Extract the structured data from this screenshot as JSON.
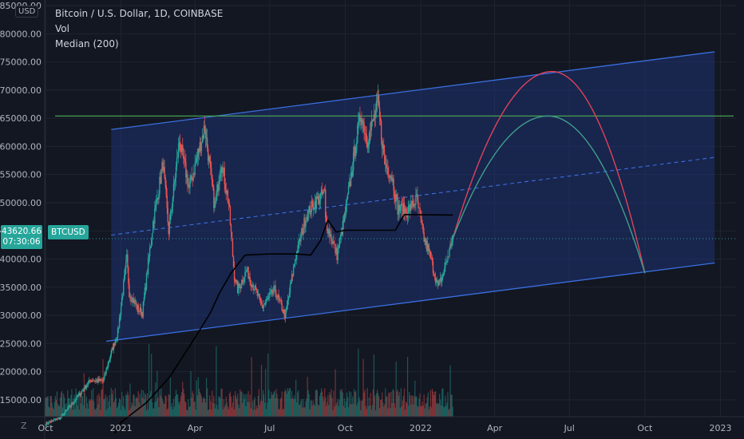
{
  "header": {
    "title": "Bitcoin / U.S. Dollar, 1D, COINBASE",
    "indicator_1": "Vol",
    "indicator_2": "Median (200)",
    "currency": "USD"
  },
  "price_tag": {
    "price": "43620.66",
    "countdown": "07:30:06",
    "symbol": "BTCUSD"
  },
  "bottom_icon": "Z",
  "colors": {
    "background": "#131722",
    "channel_fill": "#1e3a8a",
    "channel_line": "#3a6fe0",
    "resistance": "#4caf50",
    "up": "#26a69a",
    "down": "#ef5350",
    "median": "#000000",
    "arc_red": "#e0435a",
    "arc_green": "#3f9e8c",
    "price_line": "#26a69a"
  },
  "chart_data": {
    "type": "candlestick",
    "title": "Bitcoin / U.S. Dollar, 1D, COINBASE",
    "x_ticks": [
      {
        "date": "2020-10-01",
        "label": "Oct"
      },
      {
        "date": "2021-01-01",
        "label": "2021"
      },
      {
        "date": "2021-04-01",
        "label": "Apr"
      },
      {
        "date": "2021-07-01",
        "label": "Jul"
      },
      {
        "date": "2021-10-01",
        "label": "Oct"
      },
      {
        "date": "2022-01-01",
        "label": "2022"
      },
      {
        "date": "2022-04-01",
        "label": "Apr"
      },
      {
        "date": "2022-07-01",
        "label": "Jul"
      },
      {
        "date": "2022-10-01",
        "label": "Oct"
      },
      {
        "date": "2023-01-01",
        "label": "2023"
      }
    ],
    "y_ticks": [
      15000,
      20000,
      25000,
      30000,
      35000,
      40000,
      45000,
      50000,
      55000,
      60000,
      65000,
      70000,
      75000,
      80000,
      85000
    ],
    "y_tick_labels": [
      "15000.00",
      "20000.00",
      "25000.00",
      "30000.00",
      "35000.00",
      "40000.00",
      "45000.00",
      "50000.00",
      "55000.00",
      "60000.00",
      "65000.00",
      "70000.00",
      "75000.00",
      "80000.00",
      "85000.00"
    ],
    "ylim": [
      12000,
      86000
    ],
    "xlim": [
      "2020-09-30",
      "2023-01-20"
    ],
    "last_price": 43620.66,
    "price_path": [
      [
        "2020-10-01",
        10700
      ],
      [
        "2020-10-20",
        11900
      ],
      [
        "2020-11-05",
        14800
      ],
      [
        "2020-11-25",
        18500
      ],
      [
        "2020-12-10",
        18300
      ],
      [
        "2020-12-20",
        23400
      ],
      [
        "2020-12-28",
        27000
      ],
      [
        "2021-01-08",
        40000
      ],
      [
        "2021-01-11",
        34000
      ],
      [
        "2021-01-22",
        31000
      ],
      [
        "2021-01-27",
        30500
      ],
      [
        "2021-02-09",
        46500
      ],
      [
        "2021-02-21",
        57000
      ],
      [
        "2021-02-28",
        45000
      ],
      [
        "2021-03-13",
        61000
      ],
      [
        "2021-03-25",
        52500
      ],
      [
        "2021-04-13",
        63500
      ],
      [
        "2021-04-25",
        49000
      ],
      [
        "2021-05-03",
        57500
      ],
      [
        "2021-05-12",
        50000
      ],
      [
        "2021-05-19",
        37000
      ],
      [
        "2021-05-23",
        34500
      ],
      [
        "2021-06-03",
        38000
      ],
      [
        "2021-06-22",
        31500
      ],
      [
        "2021-07-07",
        34500
      ],
      [
        "2021-07-20",
        29800
      ],
      [
        "2021-08-01",
        40000
      ],
      [
        "2021-08-14",
        47500
      ],
      [
        "2021-08-22",
        49500
      ],
      [
        "2021-09-06",
        51800
      ],
      [
        "2021-09-07",
        46800
      ],
      [
        "2021-09-21",
        40700
      ],
      [
        "2021-10-01",
        48000
      ],
      [
        "2021-10-15",
        61500
      ],
      [
        "2021-10-20",
        66000
      ],
      [
        "2021-10-28",
        61000
      ],
      [
        "2021-11-10",
        67500
      ],
      [
        "2021-11-18",
        57000
      ],
      [
        "2021-11-27",
        54700
      ],
      [
        "2021-12-04",
        49000
      ],
      [
        "2021-12-15",
        48500
      ],
      [
        "2021-12-27",
        50600
      ],
      [
        "2022-01-05",
        43500
      ],
      [
        "2022-01-10",
        41800
      ],
      [
        "2022-01-22",
        35000
      ],
      [
        "2022-01-27",
        36800
      ],
      [
        "2022-02-05",
        41500
      ],
      [
        "2022-02-09",
        44000
      ]
    ],
    "volume_bars": 500,
    "median_200": [
      [
        "2020-12-24",
        9000
      ],
      [
        "2021-01-01",
        11000
      ],
      [
        "2021-02-01",
        14500
      ],
      [
        "2021-03-01",
        19000
      ],
      [
        "2021-04-01",
        26000
      ],
      [
        "2021-04-20",
        30500
      ],
      [
        "2021-05-01",
        34000
      ],
      [
        "2021-05-15",
        37500
      ],
      [
        "2021-06-01",
        40700
      ],
      [
        "2021-07-01",
        40900
      ],
      [
        "2021-08-01",
        40900
      ],
      [
        "2021-08-20",
        40700
      ],
      [
        "2021-09-01",
        43300
      ],
      [
        "2021-09-10",
        46900
      ],
      [
        "2021-09-20",
        44800
      ],
      [
        "2021-10-01",
        45100
      ],
      [
        "2021-12-01",
        45100
      ],
      [
        "2021-12-12",
        47900
      ],
      [
        "2022-02-09",
        47800
      ]
    ],
    "channel": {
      "start": "2020-12-20",
      "end": "2022-12-25",
      "upper": [
        63000,
        76800
      ],
      "lower": [
        25500,
        39300
      ],
      "mid": [
        44250,
        58050
      ]
    },
    "resistance_level": 65400,
    "arcs": [
      {
        "color": "red",
        "start": [
          "2022-02-09",
          43620
        ],
        "peak": [
          "2022-06-10",
          73300
        ],
        "end": [
          "2022-10-01",
          37500
        ]
      },
      {
        "color": "green",
        "start": [
          "2022-02-09",
          43620
        ],
        "peak": [
          "2022-06-05",
          65400
        ],
        "end": [
          "2022-10-01",
          37500
        ]
      }
    ]
  }
}
